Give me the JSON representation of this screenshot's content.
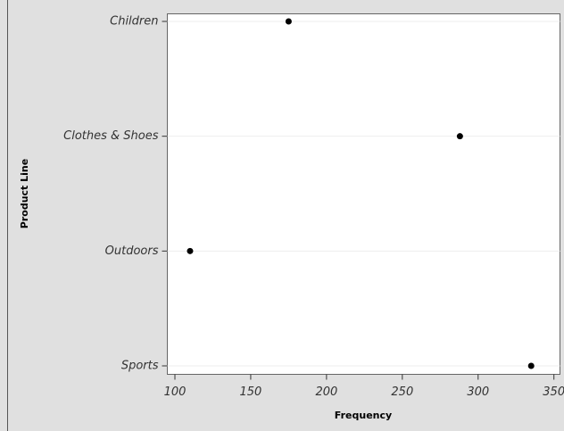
{
  "chart_data": {
    "type": "dot",
    "orientation": "horizontal",
    "categories": [
      "Children",
      "Clothes & Shoes",
      "Outdoors",
      "Sports"
    ],
    "values": [
      175,
      288,
      110,
      335
    ],
    "color": "#000000",
    "xlabel": "Frequency",
    "ylabel": "Product Line",
    "xlim": [
      95,
      354
    ],
    "xticks": [
      100,
      150,
      200,
      250,
      300,
      350
    ],
    "grid": true
  }
}
